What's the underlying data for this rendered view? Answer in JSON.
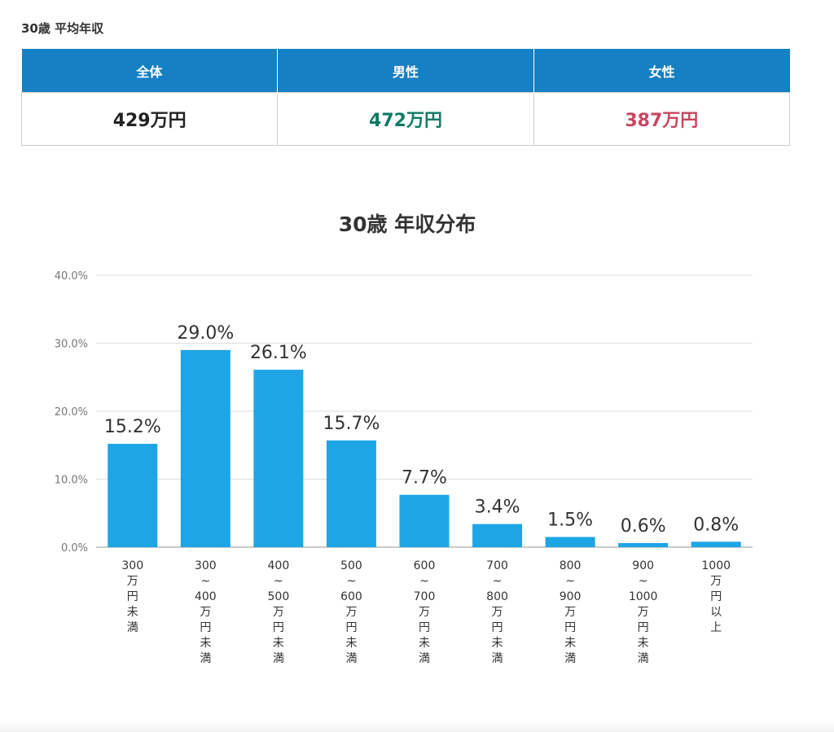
{
  "summary": {
    "title": "30歳 平均年収",
    "columns": [
      {
        "label": "全体",
        "value": "429万円",
        "color": "#222222"
      },
      {
        "label": "男性",
        "value": "472万円",
        "color": "#0e7a66"
      },
      {
        "label": "女性",
        "value": "387万円",
        "color": "#c9455e"
      }
    ]
  },
  "chart_data": {
    "type": "bar",
    "title": "30歳 年収分布",
    "xlabel": "",
    "ylabel": "",
    "ylim": [
      0,
      40
    ],
    "yticks": [
      "0.0%",
      "10.0%",
      "20.0%",
      "30.0%",
      "40.0%"
    ],
    "grid": true,
    "bar_color": "#1ea5e6",
    "categories": [
      [
        "300",
        "万",
        "円",
        "未",
        "満"
      ],
      [
        "300",
        "~",
        "400",
        "万",
        "円",
        "未",
        "満"
      ],
      [
        "400",
        "~",
        "500",
        "万",
        "円",
        "未",
        "満"
      ],
      [
        "500",
        "~",
        "600",
        "万",
        "円",
        "未",
        "満"
      ],
      [
        "600",
        "~",
        "700",
        "万",
        "円",
        "未",
        "満"
      ],
      [
        "700",
        "~",
        "800",
        "万",
        "円",
        "未",
        "満"
      ],
      [
        "800",
        "~",
        "900",
        "万",
        "円",
        "未",
        "満"
      ],
      [
        "900",
        "~",
        "1000",
        "万",
        "円",
        "未",
        "満"
      ],
      [
        "1000",
        "万",
        "円",
        "以",
        "上"
      ]
    ],
    "values": [
      15.2,
      29.0,
      26.1,
      15.7,
      7.7,
      3.4,
      1.5,
      0.6,
      0.8
    ],
    "labels": [
      "15.2%",
      "29.0%",
      "26.1%",
      "15.7%",
      "7.7%",
      "3.4%",
      "1.5%",
      "0.6%",
      "0.8%"
    ]
  }
}
